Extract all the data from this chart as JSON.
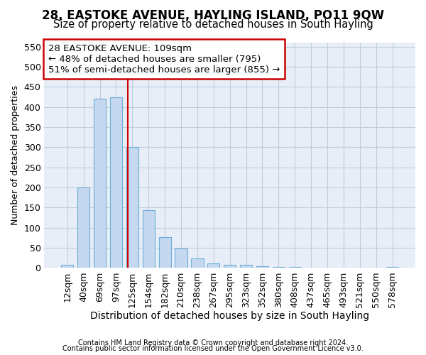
{
  "title": "28, EASTOKE AVENUE, HAYLING ISLAND, PO11 9QW",
  "subtitle": "Size of property relative to detached houses in South Hayling",
  "xlabel": "Distribution of detached houses by size in South Hayling",
  "ylabel": "Number of detached properties",
  "footer1": "Contains HM Land Registry data © Crown copyright and database right 2024.",
  "footer2": "Contains public sector information licensed under the Open Government Licence v3.0.",
  "categories": [
    "12sqm",
    "40sqm",
    "69sqm",
    "97sqm",
    "125sqm",
    "154sqm",
    "182sqm",
    "210sqm",
    "238sqm",
    "267sqm",
    "295sqm",
    "323sqm",
    "352sqm",
    "380sqm",
    "408sqm",
    "437sqm",
    "465sqm",
    "493sqm",
    "521sqm",
    "550sqm",
    "578sqm"
  ],
  "values": [
    8,
    200,
    420,
    425,
    300,
    143,
    77,
    48,
    24,
    12,
    8,
    7,
    4,
    3,
    3,
    0,
    0,
    0,
    0,
    0,
    3
  ],
  "bar_color": "#c5d8f0",
  "bar_edge_color": "#6baed6",
  "background_color": "#e8eef8",
  "grid_color": "#c0ccdd",
  "ylim": [
    0,
    560
  ],
  "yticks": [
    0,
    50,
    100,
    150,
    200,
    250,
    300,
    350,
    400,
    450,
    500,
    550
  ],
  "annotation_line1": "28 EASTOKE AVENUE: 109sqm",
  "annotation_line2": "← 48% of detached houses are smaller (795)",
  "annotation_line3": "51% of semi-detached houses are larger (855) →",
  "annotation_box_color": "#ffffff",
  "annotation_box_edge": "#cc0000",
  "red_line_x": 3.72,
  "title_fontsize": 12,
  "subtitle_fontsize": 10.5,
  "xlabel_fontsize": 10,
  "ylabel_fontsize": 9,
  "tick_fontsize": 9,
  "annotation_fontsize": 9.5,
  "bar_width": 0.75
}
